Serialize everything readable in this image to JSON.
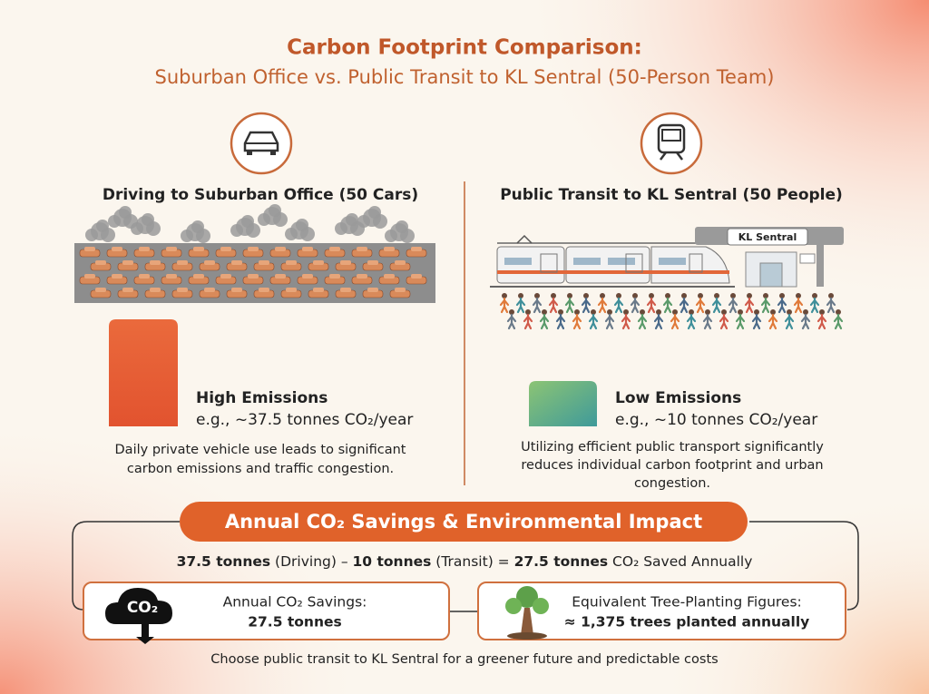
{
  "header": {
    "title": "Carbon Footprint Comparison:",
    "subtitle": "Suburban Office vs. Public Transit to KL Sentral (50-Person Team)"
  },
  "driving": {
    "heading": "Driving to Suburban Office (50 Cars)",
    "emission_label": "High Emissions",
    "emission_text": "e.g., ~37.5 tonnes CO₂/year",
    "description": [
      "Daily private vehicle use leads to significant",
      "carbon emissions and traffic congestion."
    ]
  },
  "transit": {
    "heading": "Public Transit to KL Sentral (50 People)",
    "station_sign": "KL Sentral",
    "emission_label": "Low Emissions",
    "emission_text": "e.g., ~10 tonnes CO₂/year",
    "description": [
      "Utilizing efficient public transport significantly",
      "reduces individual carbon footprint and urban",
      "congestion."
    ]
  },
  "impact": {
    "title": "Annual CO₂ Savings & Environmental Impact",
    "equation": [
      "37.5 tonnes",
      "(Driving) –",
      "10 tonnes",
      "(Transit) =",
      "27.5 tonnes",
      "CO₂ Saved Annually"
    ],
    "co2_icon": "CO₂",
    "savings": {
      "label": "Annual CO₂ Savings:",
      "value": "27.5 tonnes"
    },
    "trees": {
      "label": "Equivalent Tree-Planting Figures:",
      "value": "≈ 1,375 trees planted annually"
    }
  },
  "footer": "Choose public transit to KL Sentral for a greener future and predictable costs"
}
